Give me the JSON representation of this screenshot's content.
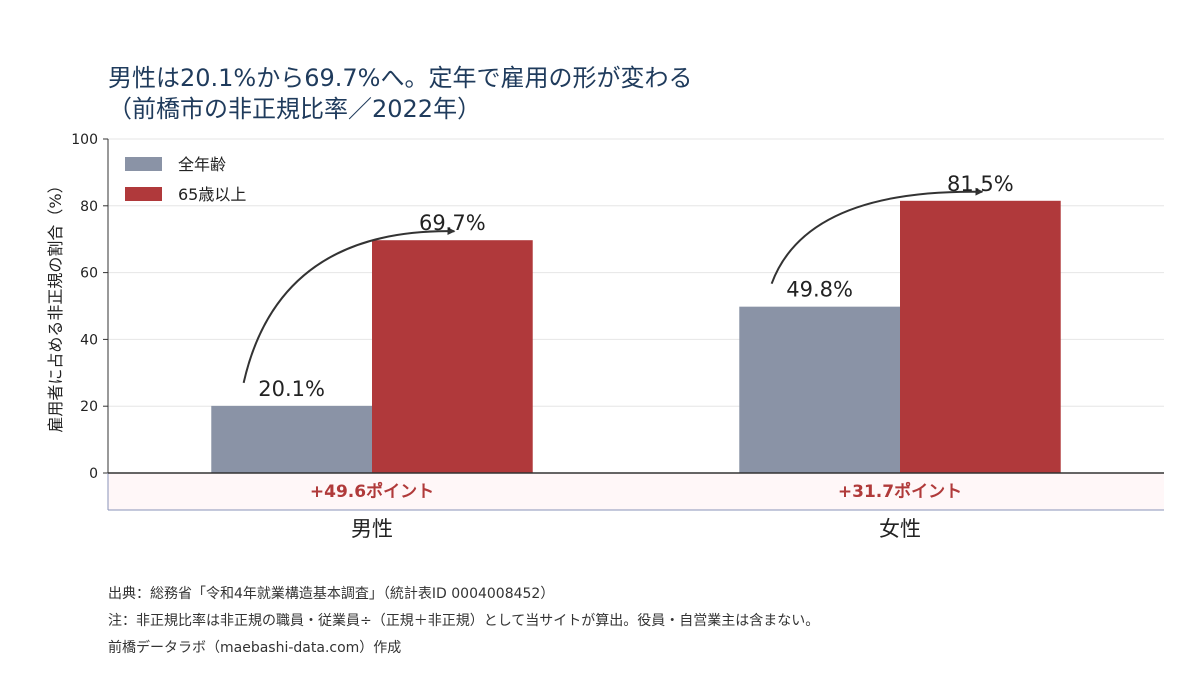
{
  "chart_data": {
    "type": "bar",
    "title_lines": [
      "男性は20.1%から69.7%へ。定年で雇用の形が変わる",
      "（前橋市の非正規比率／2022年）"
    ],
    "ylabel": "雇用者に占める非正規の割合（%）",
    "ylim": [
      0,
      100
    ],
    "yticks": [
      0,
      20,
      40,
      60,
      80,
      100
    ],
    "grid": true,
    "legend_position": "top-left",
    "categories": [
      "男性",
      "女性"
    ],
    "series": [
      {
        "name": "全年齢",
        "color": "#8a93a6",
        "values": [
          20.1,
          49.8
        ],
        "labels": [
          "20.1%",
          "49.8%"
        ]
      },
      {
        "name": "65歳以上",
        "color": "#b0393b",
        "values": [
          69.7,
          81.5
        ],
        "labels": [
          "69.7%",
          "81.5%"
        ]
      }
    ],
    "annotations": [
      "+49.6ポイント",
      "+31.7ポイント"
    ],
    "annotation_color": "#b03a3a"
  },
  "footer": {
    "source": "出典：総務省「令和4年就業構造基本調査」（統計表ID 0004008452）",
    "note": "注：非正規比率は非正規の職員・従業員÷（正規＋非正規）として当サイトが算出。役員・自営業主は含まない。",
    "credit": "前橋データラボ（maebashi-data.com）作成"
  }
}
